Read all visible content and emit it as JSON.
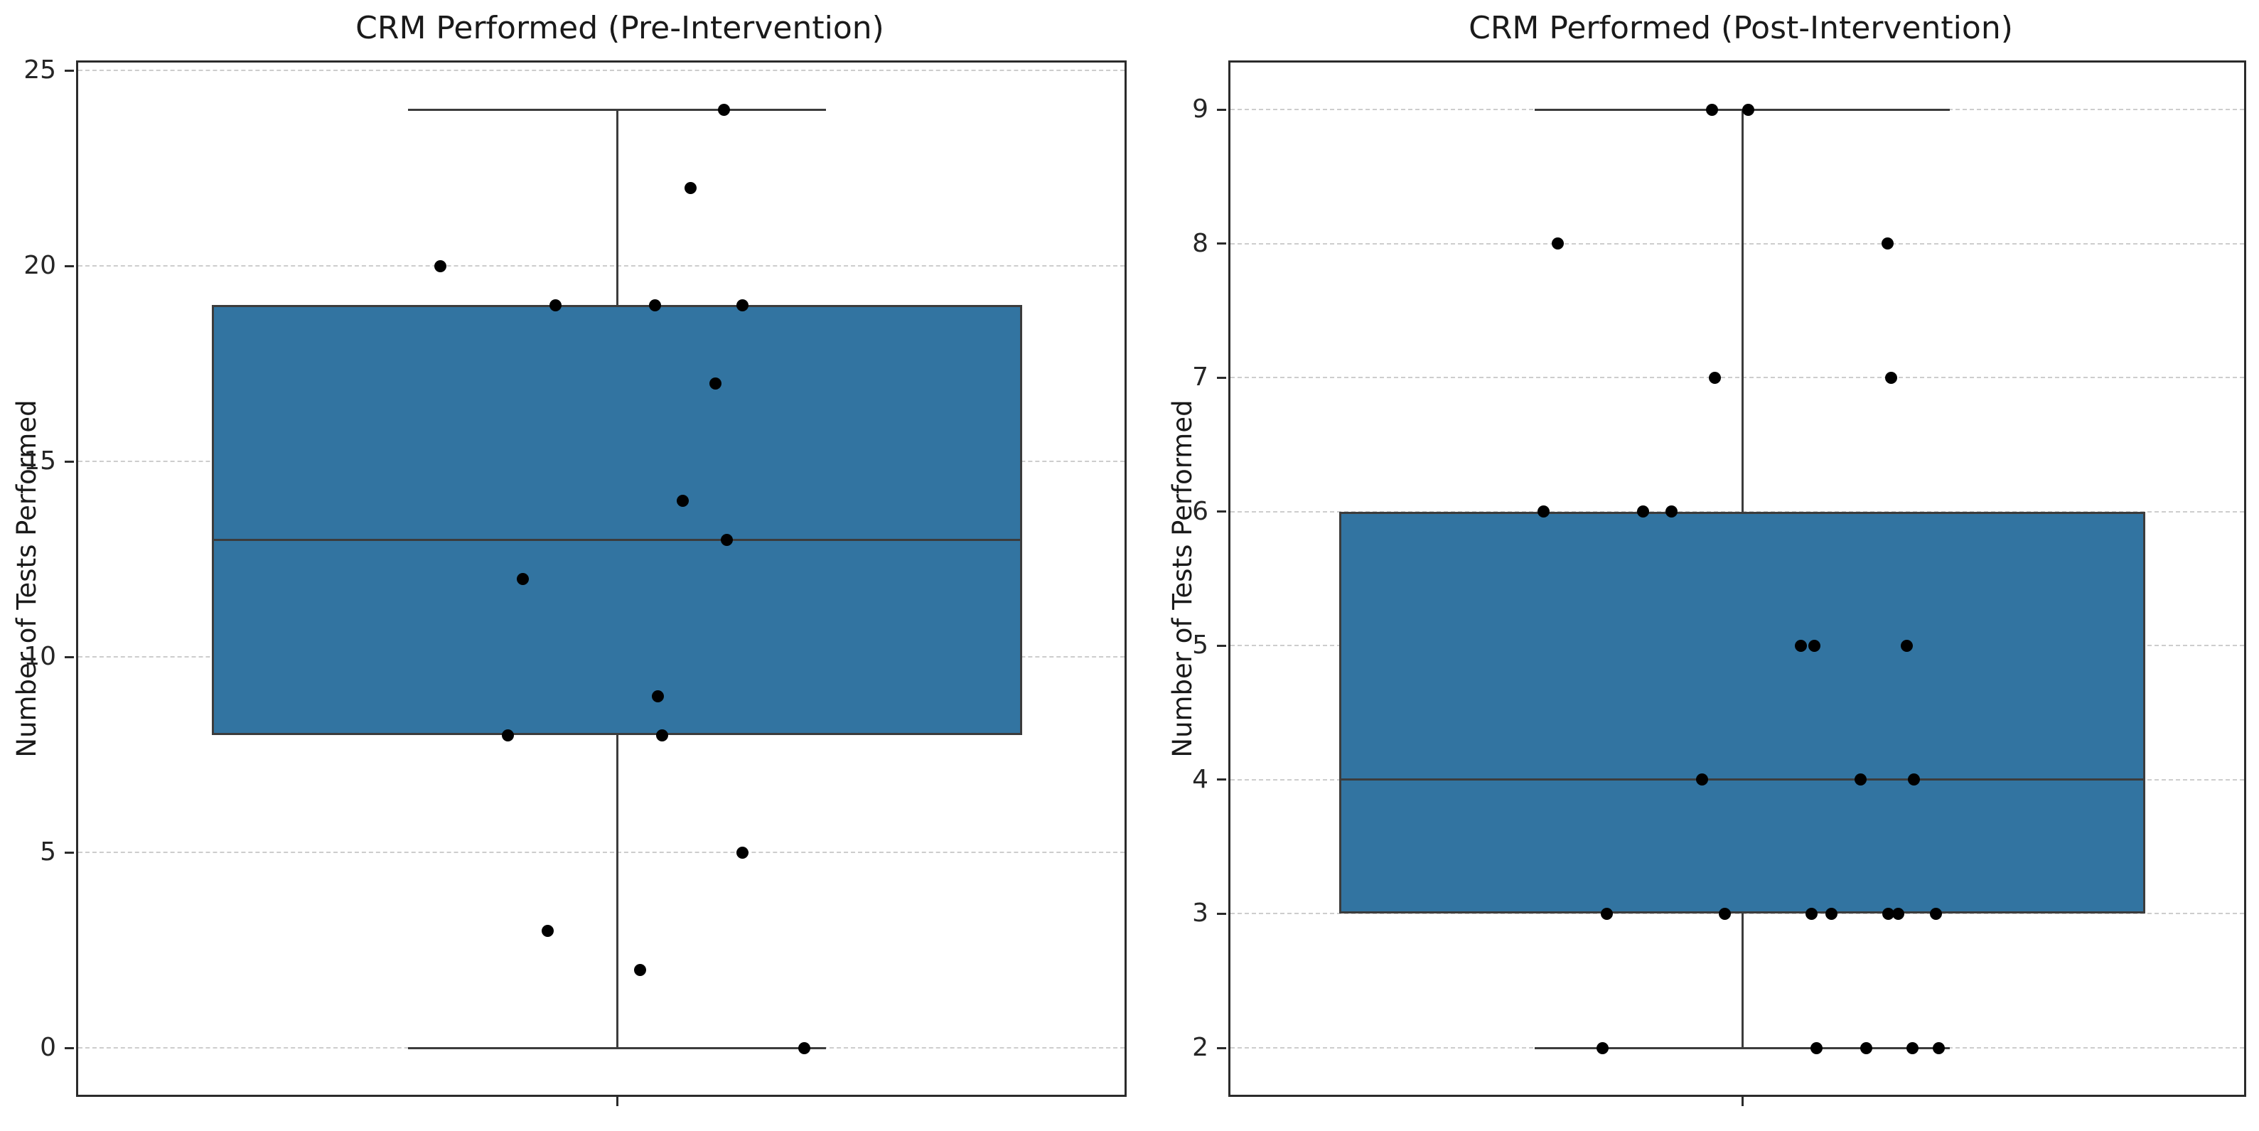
{
  "figure": {
    "background": "#ffffff",
    "grid": "horizontal-dashed",
    "x_axis_tick_labels": []
  },
  "colors": {
    "box_fill": "#3274a1",
    "box_edge": "#3c3c3c",
    "whisker": "#3c3c3c",
    "median": "#3c3c3c",
    "point": "#000000",
    "grid": "#cdcdcd",
    "spine": "#2b2b2b",
    "text": "#1a1a1a"
  },
  "chart_data": [
    {
      "id": "pre",
      "type": "box+strip",
      "title": "CRM Performed (Pre-Intervention)",
      "ylabel": "Number of Tests Performed",
      "xlabel": "",
      "ylim": [
        -1.2,
        25.2
      ],
      "yticks": [
        0,
        5,
        10,
        15,
        20,
        25
      ],
      "legend": "none",
      "box": {
        "q1": 8,
        "median": 13,
        "q3": 19,
        "whisker_low": 0,
        "whisker_high": 24,
        "center": 0.515,
        "width": 0.775,
        "cap_width": 0.4
      },
      "points": [
        {
          "v": 24,
          "x": 0.617
        },
        {
          "v": 22,
          "x": 0.585
        },
        {
          "v": 20,
          "x": 0.346
        },
        {
          "v": 19,
          "x": 0.456
        },
        {
          "v": 19,
          "x": 0.551
        },
        {
          "v": 19,
          "x": 0.635
        },
        {
          "v": 17,
          "x": 0.609
        },
        {
          "v": 14,
          "x": 0.578
        },
        {
          "v": 13,
          "x": 0.62
        },
        {
          "v": 12,
          "x": 0.425
        },
        {
          "v": 9,
          "x": 0.554
        },
        {
          "v": 8,
          "x": 0.411
        },
        {
          "v": 8,
          "x": 0.558
        },
        {
          "v": 5,
          "x": 0.635
        },
        {
          "v": 3,
          "x": 0.449
        },
        {
          "v": 2,
          "x": 0.537
        },
        {
          "v": 0,
          "x": 0.694
        }
      ]
    },
    {
      "id": "post",
      "type": "box+strip",
      "title": "CRM Performed (Post-Intervention)",
      "ylabel": "Number of Tests Performed",
      "xlabel": "",
      "ylim": [
        1.65,
        9.35
      ],
      "yticks": [
        2,
        3,
        4,
        5,
        6,
        7,
        8,
        9
      ],
      "legend": "none",
      "box": {
        "q1": 3,
        "median": 4,
        "q3": 6,
        "whisker_low": 2,
        "whisker_high": 9,
        "center": 0.505,
        "width": 0.795,
        "cap_width": 0.41
      },
      "points": [
        {
          "v": 9,
          "x": 0.475
        },
        {
          "v": 9,
          "x": 0.511
        },
        {
          "v": 8,
          "x": 0.323
        },
        {
          "v": 8,
          "x": 0.648
        },
        {
          "v": 7,
          "x": 0.478
        },
        {
          "v": 7,
          "x": 0.652
        },
        {
          "v": 6,
          "x": 0.309
        },
        {
          "v": 6,
          "x": 0.407
        },
        {
          "v": 6,
          "x": 0.435
        },
        {
          "v": 5,
          "x": 0.563
        },
        {
          "v": 5,
          "x": 0.576
        },
        {
          "v": 5,
          "x": 0.667
        },
        {
          "v": 4,
          "x": 0.465
        },
        {
          "v": 4,
          "x": 0.622
        },
        {
          "v": 4,
          "x": 0.674
        },
        {
          "v": 3,
          "x": 0.371
        },
        {
          "v": 3,
          "x": 0.488
        },
        {
          "v": 3,
          "x": 0.573
        },
        {
          "v": 3,
          "x": 0.593
        },
        {
          "v": 3,
          "x": 0.649
        },
        {
          "v": 3,
          "x": 0.659
        },
        {
          "v": 3,
          "x": 0.696
        },
        {
          "v": 2,
          "x": 0.367
        },
        {
          "v": 2,
          "x": 0.578
        },
        {
          "v": 2,
          "x": 0.627
        },
        {
          "v": 2,
          "x": 0.673
        },
        {
          "v": 2,
          "x": 0.699
        }
      ]
    }
  ]
}
